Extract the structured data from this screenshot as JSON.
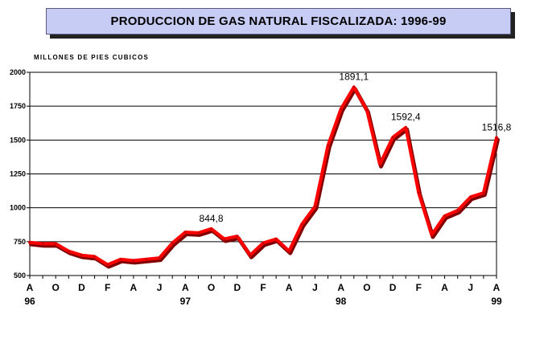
{
  "chart_data": {
    "type": "line",
    "title": "PRODUCCION DE GAS NATURAL FISCALIZADA: 1996-99",
    "ylabel": "MILLONES DE PIES CUBICOS",
    "xlabel": "",
    "ylim": [
      500,
      2000
    ],
    "yticks": [
      "2000",
      "1750",
      "1500",
      "1250",
      "1000",
      "750",
      "500"
    ],
    "grid": true,
    "legend": "none",
    "line_color": "#ff0000",
    "shadow_color": "#800000",
    "x_month_labels": [
      "A",
      "O",
      "D",
      "F",
      "A",
      "J",
      "A",
      "O",
      "D",
      "F",
      "A",
      "J",
      "A",
      "O",
      "D",
      "F",
      "A",
      "J",
      "A"
    ],
    "x_year_labels": [
      "96",
      "97",
      "98",
      "99"
    ],
    "x": [
      "1996-08",
      "1996-09",
      "1996-10",
      "1996-11",
      "1996-12",
      "1997-01",
      "1997-02",
      "1997-03",
      "1997-04",
      "1997-05",
      "1997-06",
      "1997-07",
      "1997-08",
      "1997-09",
      "1997-10",
      "1997-11",
      "1997-12",
      "1998-01",
      "1998-02",
      "1998-03",
      "1998-04",
      "1998-05",
      "1998-06",
      "1998-07",
      "1998-08",
      "1998-09",
      "1998-10",
      "1998-11",
      "1998-12",
      "1999-01",
      "1999-02",
      "1999-03",
      "1999-04",
      "1999-05",
      "1999-06",
      "1999-07",
      "1999-08"
    ],
    "values": [
      745,
      735,
      735,
      680,
      650,
      640,
      580,
      620,
      610,
      620,
      630,
      740,
      820,
      815,
      844.8,
      770,
      790,
      650,
      740,
      770,
      680,
      880,
      1010,
      1460,
      1730,
      1891.1,
      1720,
      1320,
      1520,
      1592.4,
      1110,
      800,
      940,
      980,
      1080,
      1110,
      1516.8
    ],
    "annotations": [
      {
        "index": 14,
        "text": "844,8"
      },
      {
        "index": 25,
        "text": "1891,1"
      },
      {
        "index": 29,
        "text": "1592,4"
      },
      {
        "index": 36,
        "text": "1516,8"
      }
    ]
  }
}
